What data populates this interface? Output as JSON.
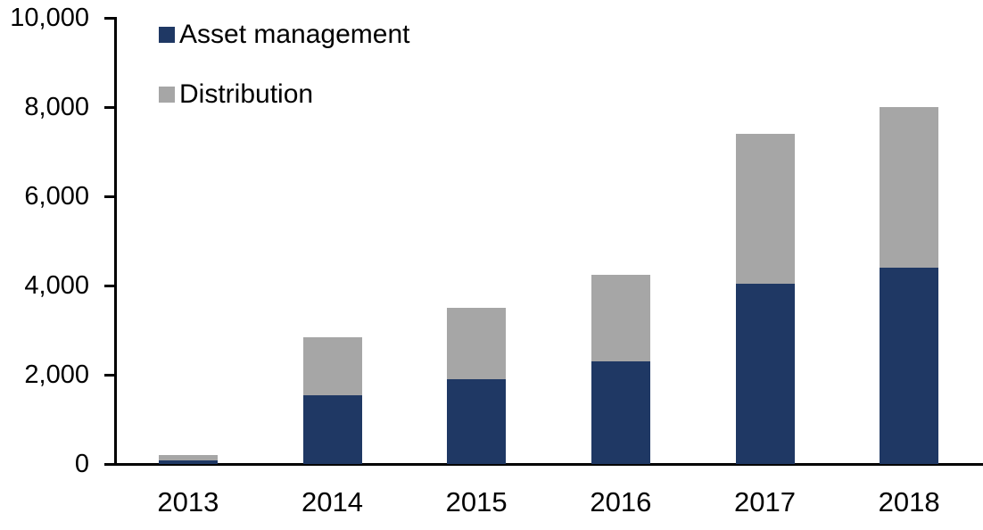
{
  "chart_data": {
    "type": "bar",
    "stacked": true,
    "title": "",
    "xlabel": "",
    "ylabel": "",
    "categories": [
      "2013",
      "2014",
      "2015",
      "2016",
      "2017",
      "2018"
    ],
    "series": [
      {
        "name": "Asset management",
        "color": "#1f3864",
        "values": [
          80,
          1550,
          1900,
          2300,
          4050,
          4400
        ]
      },
      {
        "name": "Distribution",
        "color": "#a6a6a6",
        "values": [
          120,
          1300,
          1600,
          1950,
          3350,
          3600
        ]
      }
    ],
    "totals": [
      200,
      2850,
      3500,
      4250,
      7400,
      8000
    ],
    "ylim": [
      0,
      10000
    ],
    "yticks": {
      "values": [
        0,
        2000,
        4000,
        6000,
        8000,
        10000
      ],
      "labels": [
        "0",
        "2,000",
        "4,000",
        "6,000",
        "8,000",
        "10,000"
      ]
    },
    "grid": false,
    "legend_position": "top-left"
  },
  "colors": {
    "axis": "#000000",
    "background": "#ffffff",
    "asset_management": "#1f3864",
    "distribution": "#a6a6a6"
  }
}
